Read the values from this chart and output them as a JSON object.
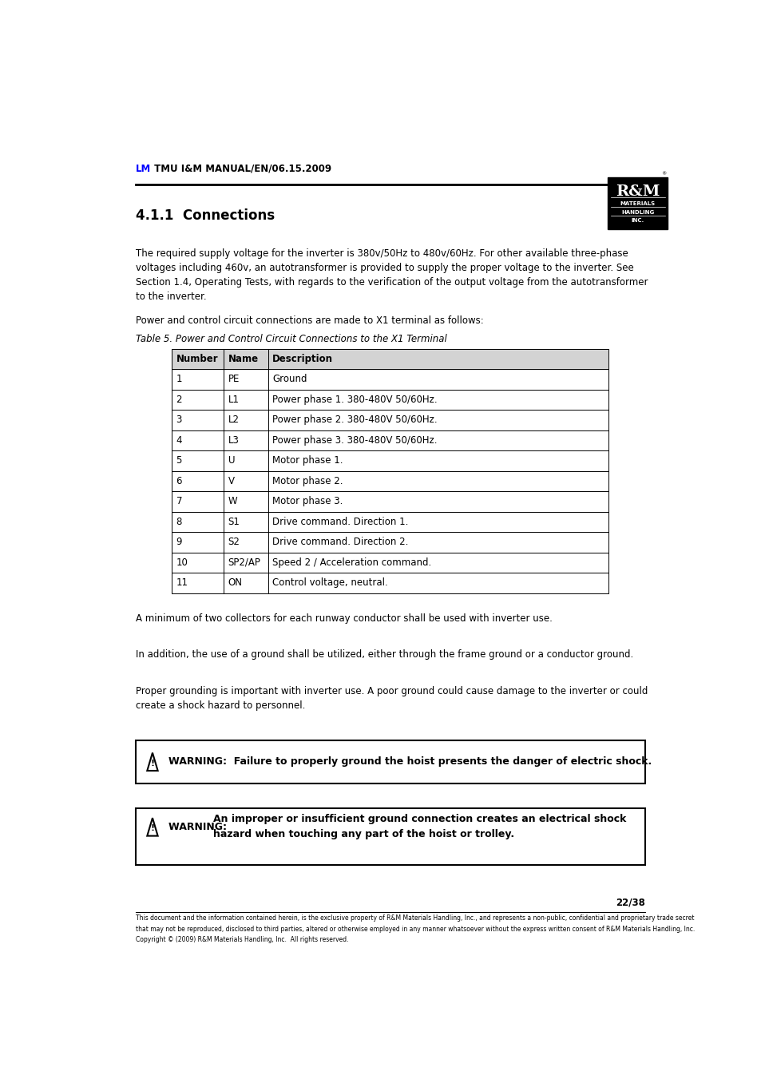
{
  "header_lm": "LM",
  "header_text": " TMU I&M MANUAL/EN/06.15.2009",
  "header_lm_color": "#0000FF",
  "section_title": "4.1.1  Connections",
  "para1": "The required supply voltage for the inverter is 380v/50Hz to 480v/60Hz. For other available three-phase\nvoltages including 460v, an autotransformer is provided to supply the proper voltage to the inverter. See\nSection 1.4, Operating Tests, with regards to the verification of the output voltage from the autotransformer\nto the inverter.",
  "para2": "Power and control circuit connections are made to X1 terminal as follows:",
  "table_title": "Table 5. Power and Control Circuit Connections to the X1 Terminal",
  "table_headers": [
    "Number",
    "Name",
    "Description"
  ],
  "table_rows": [
    [
      "1",
      "PE",
      "Ground"
    ],
    [
      "2",
      "L1",
      "Power phase 1. 380-480V 50/60Hz."
    ],
    [
      "3",
      "L2",
      "Power phase 2. 380-480V 50/60Hz."
    ],
    [
      "4",
      "L3",
      "Power phase 3. 380-480V 50/60Hz."
    ],
    [
      "5",
      "U",
      "Motor phase 1."
    ],
    [
      "6",
      "V",
      "Motor phase 2."
    ],
    [
      "7",
      "W",
      "Motor phase 3."
    ],
    [
      "8",
      "S1",
      "Drive command. Direction 1."
    ],
    [
      "9",
      "S2",
      "Drive command. Direction 2."
    ],
    [
      "10",
      "SP2/AP",
      "Speed 2 / Acceleration command."
    ],
    [
      "11",
      "ON",
      "Control voltage, neutral."
    ]
  ],
  "para3": "A minimum of two collectors for each runway conductor shall be used with inverter use.",
  "para4": "In addition, the use of a ground shall be utilized, either through the frame ground or a conductor ground.",
  "para5": "Proper grounding is important with inverter use. A poor ground could cause damage to the inverter or could\ncreate a shock hazard to personnel.",
  "warning1": "WARNING:  Failure to properly ground the hoist presents the danger of electric shock.",
  "warning2_bold": "WARNING:  ",
  "warning2_rest": "An improper or insufficient ground connection creates an electrical shock\nhazard when touching any part of the hoist or trolley.",
  "page_number": "22/38",
  "footer_line1": "This document and the information contained herein, is the exclusive property of R&M Materials Handling, Inc., and represents a non-public, confidential and proprietary trade secret",
  "footer_line2": "that may not be reproduced, disclosed to third parties, altered or otherwise employed in any manner whatsoever without the express written consent of R&M Materials Handling, Inc.",
  "footer_line3": "Copyright © (2009) R&M Materials Handling, Inc.  All rights reserved."
}
